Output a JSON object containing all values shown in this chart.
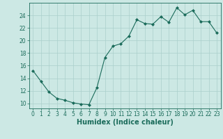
{
  "x": [
    0,
    1,
    2,
    3,
    4,
    5,
    6,
    7,
    8,
    9,
    10,
    11,
    12,
    13,
    14,
    15,
    16,
    17,
    18,
    19,
    20,
    21,
    22,
    23
  ],
  "y": [
    15.2,
    13.5,
    11.8,
    10.8,
    10.5,
    10.1,
    9.9,
    9.8,
    12.5,
    17.3,
    19.1,
    19.5,
    20.7,
    23.3,
    22.7,
    22.6,
    23.8,
    22.9,
    25.2,
    24.1,
    24.8,
    23.0,
    23.0,
    21.2
  ],
  "line_color": "#1a6b5a",
  "marker": "D",
  "marker_size": 2.0,
  "bg_color": "#cce8e4",
  "grid_color": "#aacfcb",
  "xlabel": "Humidex (Indice chaleur)",
  "xlim": [
    -0.5,
    23.5
  ],
  "ylim": [
    9.2,
    26.0
  ],
  "yticks": [
    10,
    12,
    14,
    16,
    18,
    20,
    22,
    24
  ],
  "xticks": [
    0,
    1,
    2,
    3,
    4,
    5,
    6,
    7,
    8,
    9,
    10,
    11,
    12,
    13,
    14,
    15,
    16,
    17,
    18,
    19,
    20,
    21,
    22,
    23
  ],
  "tick_fontsize": 5.5,
  "xlabel_fontsize": 7.0
}
